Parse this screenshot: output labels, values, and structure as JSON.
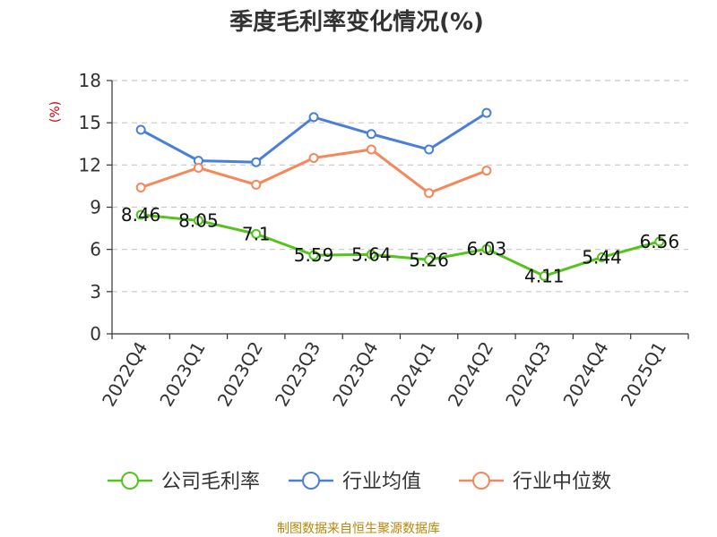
{
  "colors": {
    "company": "#52c41a",
    "industry_avg": "#4a7fd9",
    "industry_median": "#f5875a",
    "grid": "#c8c8c8",
    "axis": "#333333",
    "ylabel": "#cc0000",
    "source": "#b8860b"
  },
  "source": "制图数据来自恒生聚源数据库",
  "chart_data": {
    "type": "line",
    "title": "季度毛利率变化情况(%)",
    "ylabel": "(%)",
    "xlabel": "",
    "categories": [
      "2022Q4",
      "2023Q1",
      "2023Q2",
      "2023Q3",
      "2023Q4",
      "2024Q1",
      "2024Q2",
      "2024Q3",
      "2024Q4",
      "2025Q1"
    ],
    "yticks": [
      0,
      3,
      6,
      9,
      12,
      15,
      18
    ],
    "ylim": [
      0,
      18
    ],
    "grid": true,
    "legend_position": "bottom",
    "series": [
      {
        "name": "公司毛利率",
        "color_key": "company",
        "values": [
          8.46,
          8.05,
          7.1,
          5.59,
          5.64,
          5.26,
          6.03,
          4.11,
          5.44,
          6.56
        ],
        "labels": [
          "8.46",
          "8.05",
          "7.1",
          "5.59",
          "5.64",
          "5.26",
          "6.03",
          "4.11",
          "5.44",
          "6.56"
        ]
      },
      {
        "name": "行业均值",
        "color_key": "industry_avg",
        "values": [
          14.5,
          12.3,
          12.2,
          15.4,
          14.2,
          13.1,
          15.7,
          null,
          null,
          null
        ]
      },
      {
        "name": "行业中位数",
        "color_key": "industry_median",
        "values": [
          10.4,
          11.8,
          10.6,
          12.5,
          13.1,
          10.0,
          11.6,
          null,
          null,
          null
        ]
      }
    ]
  }
}
